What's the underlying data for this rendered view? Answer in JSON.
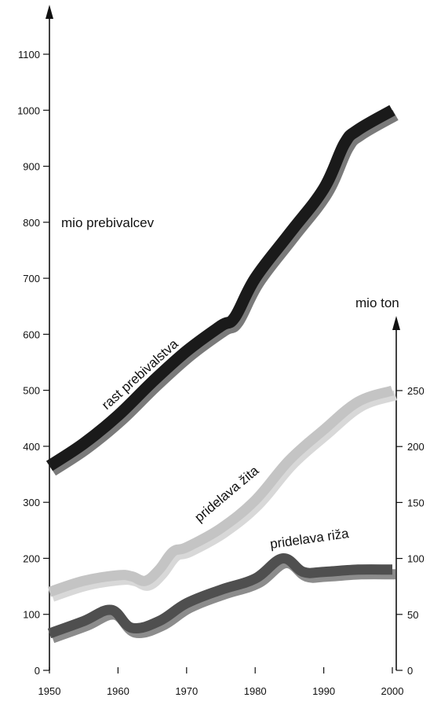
{
  "chart_data": {
    "type": "line",
    "title": "",
    "x": [
      1950,
      1955,
      1960,
      1965,
      1970,
      1975,
      1980,
      1985,
      1990,
      1995,
      2000
    ],
    "xticks": [
      "1950",
      "1960",
      "1970",
      "1980",
      "1990",
      "2000"
    ],
    "xlim": [
      1950,
      2000
    ],
    "left_axis": {
      "label": "mio prebivalcev",
      "ylim": [
        0,
        1150
      ],
      "ticks": [
        "0",
        "100",
        "200",
        "300",
        "400",
        "500",
        "600",
        "700",
        "800",
        "900",
        "1000",
        "1100"
      ]
    },
    "right_axis": {
      "label": "mio ton",
      "ylim": [
        0,
        250
      ],
      "ticks": [
        "0",
        "50",
        "100",
        "150",
        "200",
        "250"
      ]
    },
    "series": [
      {
        "name": "rast prebivalstva",
        "axis": "left",
        "color": "#1a1a1a",
        "shadow": "#7a7a7a",
        "points": [
          [
            1950,
            365
          ],
          [
            1955,
            405
          ],
          [
            1960,
            455
          ],
          [
            1965,
            515
          ],
          [
            1970,
            570
          ],
          [
            1975,
            615
          ],
          [
            1977,
            630
          ],
          [
            1980,
            700
          ],
          [
            1985,
            780
          ],
          [
            1990,
            860
          ],
          [
            1993,
            940
          ],
          [
            1995,
            965
          ],
          [
            2000,
            1000
          ]
        ]
      },
      {
        "name": "pridelava žita",
        "axis": "right",
        "color": "#c4c4c4",
        "shadow": "#d8d8d8",
        "points": [
          [
            1950,
            70
          ],
          [
            1955,
            80
          ],
          [
            1960,
            85
          ],
          [
            1962,
            84
          ],
          [
            1964,
            80
          ],
          [
            1966,
            90
          ],
          [
            1968,
            106
          ],
          [
            1970,
            110
          ],
          [
            1975,
            127
          ],
          [
            1980,
            152
          ],
          [
            1985,
            188
          ],
          [
            1990,
            215
          ],
          [
            1995,
            240
          ],
          [
            2000,
            250
          ]
        ]
      },
      {
        "name": "pridelava riža",
        "axis": "right",
        "color": "#4f4f4f",
        "shadow": "#8c8c8c",
        "points": [
          [
            1950,
            33
          ],
          [
            1955,
            44
          ],
          [
            1959,
            54
          ],
          [
            1962,
            38
          ],
          [
            1966,
            44
          ],
          [
            1970,
            60
          ],
          [
            1975,
            72
          ],
          [
            1980,
            82
          ],
          [
            1984,
            100
          ],
          [
            1987,
            88
          ],
          [
            1990,
            88
          ],
          [
            1995,
            90
          ],
          [
            2000,
            90
          ]
        ]
      }
    ],
    "grid": false,
    "legend": "inline labels"
  }
}
